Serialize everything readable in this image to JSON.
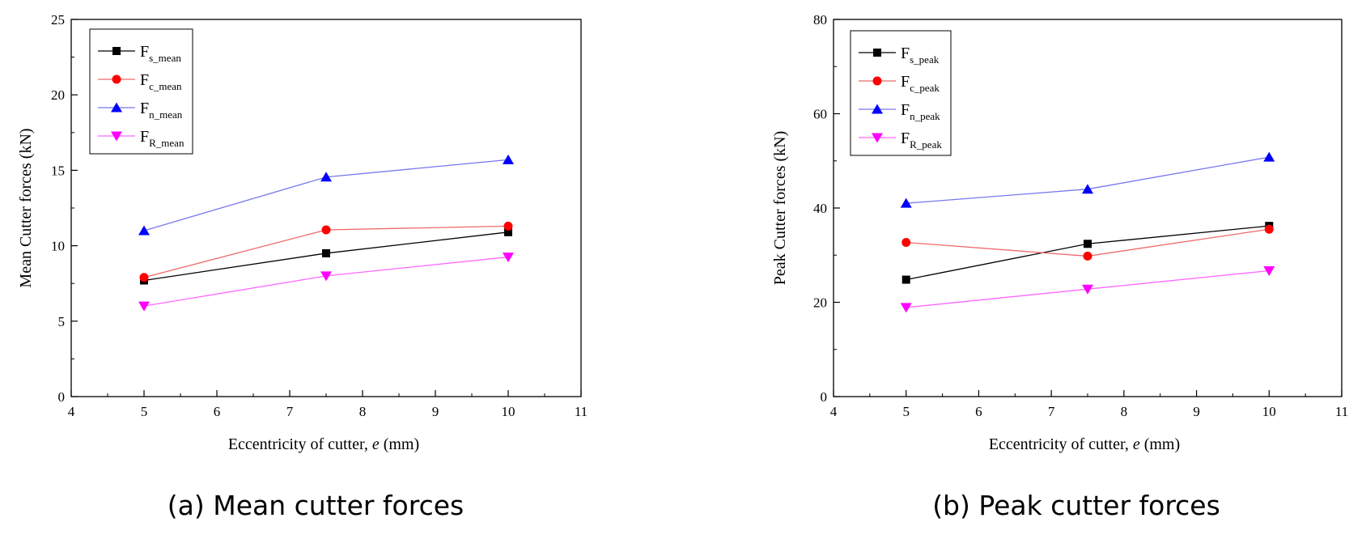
{
  "colors": {
    "series": [
      "#000000",
      "#ff0000",
      "#0000ff",
      "#ff00ff"
    ],
    "lines": [
      "#000000",
      "#ee6a6a",
      "#7777ee",
      "#ff66ff"
    ]
  },
  "chart_data": [
    {
      "type": "line",
      "caption": "(a) Mean cutter forces",
      "xlabel_prefix": "Eccentricity of cutter, ",
      "xlabel_var": "e",
      "xlabel_suffix": " (mm)",
      "ylabel": "Mean Cutter forces (kN)",
      "xlim": [
        4,
        11
      ],
      "ylim": [
        0,
        25
      ],
      "xticks": [
        4,
        5,
        6,
        7,
        8,
        9,
        10,
        11
      ],
      "yticks": [
        0,
        5,
        10,
        15,
        20,
        25
      ],
      "grid": false,
      "legend_position": "top-left",
      "x": [
        5,
        7.5,
        10
      ],
      "series": [
        {
          "name_main": "F",
          "name_sub": "s_mean",
          "marker": "square",
          "values": [
            7.7,
            9.5,
            10.9
          ]
        },
        {
          "name_main": "F",
          "name_sub": "c_mean",
          "marker": "circle",
          "values": [
            7.9,
            11.05,
            11.3
          ]
        },
        {
          "name_main": "F",
          "name_sub": "n_mean",
          "marker": "triangle-up",
          "values": [
            11.0,
            14.55,
            15.7
          ]
        },
        {
          "name_main": "F",
          "name_sub": "R_mean",
          "marker": "triangle-down",
          "values": [
            6.0,
            8.0,
            9.25
          ]
        }
      ]
    },
    {
      "type": "line",
      "caption": "(b) Peak cutter forces",
      "xlabel_prefix": "Eccentricity of cutter, ",
      "xlabel_var": "e",
      "xlabel_suffix": " (mm)",
      "ylabel": "Peak Cutter forces (kN)",
      "xlim": [
        4,
        11
      ],
      "ylim": [
        0,
        80
      ],
      "xticks": [
        4,
        5,
        6,
        7,
        8,
        9,
        10,
        11
      ],
      "yticks": [
        0,
        20,
        40,
        60,
        80
      ],
      "grid": false,
      "legend_position": "top-left",
      "x": [
        5,
        7.5,
        10
      ],
      "series": [
        {
          "name_main": "F",
          "name_sub": "s_peak",
          "marker": "square",
          "values": [
            24.8,
            32.4,
            36.2
          ]
        },
        {
          "name_main": "F",
          "name_sub": "c_peak",
          "marker": "circle",
          "values": [
            32.7,
            29.8,
            35.5
          ]
        },
        {
          "name_main": "F",
          "name_sub": "n_peak",
          "marker": "triangle-up",
          "values": [
            41.0,
            44.0,
            50.8
          ]
        },
        {
          "name_main": "F",
          "name_sub": "R_peak",
          "marker": "triangle-down",
          "values": [
            18.9,
            22.8,
            26.7
          ]
        }
      ]
    }
  ]
}
